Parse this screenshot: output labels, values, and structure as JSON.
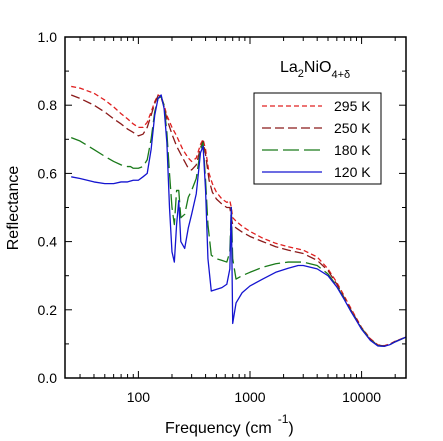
{
  "chart_data": {
    "type": "line",
    "title": "",
    "xlabel": "Frequency (cm",
    "xlabel_sup": "-1",
    "xlabel_close": ")",
    "ylabel": "Reflectance",
    "x_scale": "log",
    "xlim": [
      22,
      25000
    ],
    "ylim": [
      0.0,
      1.0
    ],
    "x_ticks": [
      100,
      1000,
      10000
    ],
    "x_tick_labels": [
      "100",
      "1000",
      "10000"
    ],
    "y_ticks": [
      0.0,
      0.2,
      0.4,
      0.6,
      0.8,
      1.0
    ],
    "y_tick_labels": [
      "0.0",
      "0.2",
      "0.4",
      "0.6",
      "0.8",
      "1.0"
    ],
    "grid": false,
    "legend_position": "top-right",
    "annotation": {
      "base": "La",
      "sub1": "2",
      "mid": "NiO",
      "sub2": "4+δ"
    },
    "series": [
      {
        "name": "295 K",
        "color": "#e02020",
        "dash": "dashed-short",
        "points": [
          [
            25,
            0.855
          ],
          [
            30,
            0.85
          ],
          [
            40,
            0.835
          ],
          [
            50,
            0.815
          ],
          [
            60,
            0.795
          ],
          [
            70,
            0.775
          ],
          [
            80,
            0.76
          ],
          [
            90,
            0.745
          ],
          [
            100,
            0.735
          ],
          [
            110,
            0.735
          ],
          [
            120,
            0.75
          ],
          [
            130,
            0.78
          ],
          [
            140,
            0.81
          ],
          [
            150,
            0.83
          ],
          [
            160,
            0.825
          ],
          [
            170,
            0.8
          ],
          [
            180,
            0.77
          ],
          [
            200,
            0.735
          ],
          [
            220,
            0.71
          ],
          [
            250,
            0.67
          ],
          [
            280,
            0.645
          ],
          [
            300,
            0.635
          ],
          [
            330,
            0.645
          ],
          [
            360,
            0.685
          ],
          [
            380,
            0.7
          ],
          [
            400,
            0.67
          ],
          [
            430,
            0.6
          ],
          [
            460,
            0.57
          ],
          [
            500,
            0.545
          ],
          [
            560,
            0.525
          ],
          [
            620,
            0.515
          ],
          [
            660,
            0.52
          ],
          [
            680,
            0.5
          ],
          [
            700,
            0.47
          ],
          [
            750,
            0.46
          ],
          [
            850,
            0.445
          ],
          [
            1000,
            0.43
          ],
          [
            1300,
            0.41
          ],
          [
            1700,
            0.395
          ],
          [
            2200,
            0.385
          ],
          [
            3000,
            0.375
          ],
          [
            4000,
            0.355
          ],
          [
            5000,
            0.32
          ],
          [
            6000,
            0.28
          ],
          [
            7000,
            0.24
          ],
          [
            8000,
            0.205
          ],
          [
            9000,
            0.175
          ],
          [
            10000,
            0.148
          ],
          [
            12000,
            0.115
          ],
          [
            14000,
            0.097
          ],
          [
            16000,
            0.095
          ],
          [
            18000,
            0.1
          ],
          [
            20000,
            0.108
          ],
          [
            25000,
            0.12
          ]
        ]
      },
      {
        "name": "250 K",
        "color": "#8b1a1a",
        "dash": "dashed-medium",
        "points": [
          [
            25,
            0.83
          ],
          [
            30,
            0.82
          ],
          [
            40,
            0.8
          ],
          [
            50,
            0.78
          ],
          [
            60,
            0.76
          ],
          [
            70,
            0.745
          ],
          [
            80,
            0.73
          ],
          [
            90,
            0.72
          ],
          [
            100,
            0.71
          ],
          [
            110,
            0.715
          ],
          [
            120,
            0.735
          ],
          [
            130,
            0.77
          ],
          [
            140,
            0.805
          ],
          [
            150,
            0.828
          ],
          [
            160,
            0.822
          ],
          [
            170,
            0.795
          ],
          [
            180,
            0.76
          ],
          [
            200,
            0.715
          ],
          [
            220,
            0.68
          ],
          [
            250,
            0.645
          ],
          [
            280,
            0.615
          ],
          [
            300,
            0.61
          ],
          [
            330,
            0.625
          ],
          [
            360,
            0.675
          ],
          [
            380,
            0.695
          ],
          [
            400,
            0.655
          ],
          [
            430,
            0.58
          ],
          [
            460,
            0.545
          ],
          [
            500,
            0.525
          ],
          [
            560,
            0.51
          ],
          [
            620,
            0.5
          ],
          [
            660,
            0.5
          ],
          [
            680,
            0.47
          ],
          [
            700,
            0.45
          ],
          [
            750,
            0.44
          ],
          [
            850,
            0.428
          ],
          [
            1000,
            0.415
          ],
          [
            1300,
            0.4
          ],
          [
            1700,
            0.385
          ],
          [
            2200,
            0.375
          ],
          [
            3000,
            0.365
          ],
          [
            4000,
            0.345
          ],
          [
            5000,
            0.315
          ],
          [
            6000,
            0.275
          ],
          [
            7000,
            0.235
          ],
          [
            8000,
            0.2
          ],
          [
            9000,
            0.172
          ],
          [
            10000,
            0.146
          ],
          [
            12000,
            0.113
          ],
          [
            14000,
            0.096
          ],
          [
            16000,
            0.094
          ],
          [
            18000,
            0.099
          ],
          [
            20000,
            0.107
          ],
          [
            25000,
            0.12
          ]
        ]
      },
      {
        "name": "180 K",
        "color": "#1a7a1a",
        "dash": "dashed-long",
        "points": [
          [
            25,
            0.705
          ],
          [
            30,
            0.695
          ],
          [
            40,
            0.67
          ],
          [
            50,
            0.65
          ],
          [
            60,
            0.635
          ],
          [
            70,
            0.625
          ],
          [
            80,
            0.62
          ],
          [
            85,
            0.62
          ],
          [
            90,
            0.615
          ],
          [
            100,
            0.615
          ],
          [
            110,
            0.62
          ],
          [
            120,
            0.64
          ],
          [
            130,
            0.7
          ],
          [
            140,
            0.78
          ],
          [
            150,
            0.82
          ],
          [
            160,
            0.825
          ],
          [
            170,
            0.8
          ],
          [
            180,
            0.72
          ],
          [
            190,
            0.6
          ],
          [
            200,
            0.5
          ],
          [
            210,
            0.45
          ],
          [
            220,
            0.55
          ],
          [
            230,
            0.55
          ],
          [
            240,
            0.47
          ],
          [
            260,
            0.48
          ],
          [
            280,
            0.53
          ],
          [
            300,
            0.55
          ],
          [
            330,
            0.585
          ],
          [
            360,
            0.67
          ],
          [
            380,
            0.69
          ],
          [
            400,
            0.58
          ],
          [
            420,
            0.45
          ],
          [
            450,
            0.36
          ],
          [
            500,
            0.35
          ],
          [
            560,
            0.345
          ],
          [
            620,
            0.34
          ],
          [
            660,
            0.37
          ],
          [
            680,
            0.5
          ],
          [
            700,
            0.35
          ],
          [
            750,
            0.29
          ],
          [
            850,
            0.3
          ],
          [
            1000,
            0.31
          ],
          [
            1300,
            0.325
          ],
          [
            1700,
            0.335
          ],
          [
            2200,
            0.34
          ],
          [
            3000,
            0.34
          ],
          [
            4000,
            0.33
          ],
          [
            5000,
            0.305
          ],
          [
            6000,
            0.27
          ],
          [
            7000,
            0.232
          ],
          [
            8000,
            0.197
          ],
          [
            9000,
            0.17
          ],
          [
            10000,
            0.145
          ],
          [
            12000,
            0.112
          ],
          [
            14000,
            0.095
          ],
          [
            16000,
            0.093
          ],
          [
            18000,
            0.098
          ],
          [
            20000,
            0.106
          ],
          [
            25000,
            0.12
          ]
        ]
      },
      {
        "name": "120 K",
        "color": "#1515d0",
        "dash": "solid",
        "points": [
          [
            25,
            0.59
          ],
          [
            30,
            0.585
          ],
          [
            40,
            0.575
          ],
          [
            50,
            0.57
          ],
          [
            60,
            0.57
          ],
          [
            70,
            0.575
          ],
          [
            80,
            0.575
          ],
          [
            90,
            0.58
          ],
          [
            100,
            0.58
          ],
          [
            110,
            0.59
          ],
          [
            120,
            0.6
          ],
          [
            130,
            0.67
          ],
          [
            140,
            0.77
          ],
          [
            150,
            0.82
          ],
          [
            160,
            0.83
          ],
          [
            170,
            0.79
          ],
          [
            180,
            0.69
          ],
          [
            190,
            0.5
          ],
          [
            200,
            0.37
          ],
          [
            210,
            0.34
          ],
          [
            220,
            0.45
          ],
          [
            230,
            0.52
          ],
          [
            240,
            0.4
          ],
          [
            260,
            0.38
          ],
          [
            280,
            0.44
          ],
          [
            300,
            0.48
          ],
          [
            330,
            0.54
          ],
          [
            360,
            0.66
          ],
          [
            380,
            0.68
          ],
          [
            400,
            0.55
          ],
          [
            420,
            0.35
          ],
          [
            450,
            0.255
          ],
          [
            500,
            0.26
          ],
          [
            560,
            0.265
          ],
          [
            620,
            0.275
          ],
          [
            660,
            0.32
          ],
          [
            680,
            0.5
          ],
          [
            700,
            0.16
          ],
          [
            750,
            0.22
          ],
          [
            850,
            0.25
          ],
          [
            1000,
            0.27
          ],
          [
            1300,
            0.29
          ],
          [
            1700,
            0.31
          ],
          [
            2200,
            0.322
          ],
          [
            2700,
            0.33
          ],
          [
            3000,
            0.33
          ],
          [
            4000,
            0.32
          ],
          [
            5000,
            0.3
          ],
          [
            6000,
            0.267
          ],
          [
            7000,
            0.23
          ],
          [
            8000,
            0.196
          ],
          [
            9000,
            0.168
          ],
          [
            10000,
            0.143
          ],
          [
            12000,
            0.11
          ],
          [
            14000,
            0.094
          ],
          [
            16000,
            0.093
          ],
          [
            18000,
            0.098
          ],
          [
            20000,
            0.106
          ],
          [
            25000,
            0.12
          ]
        ]
      }
    ]
  }
}
